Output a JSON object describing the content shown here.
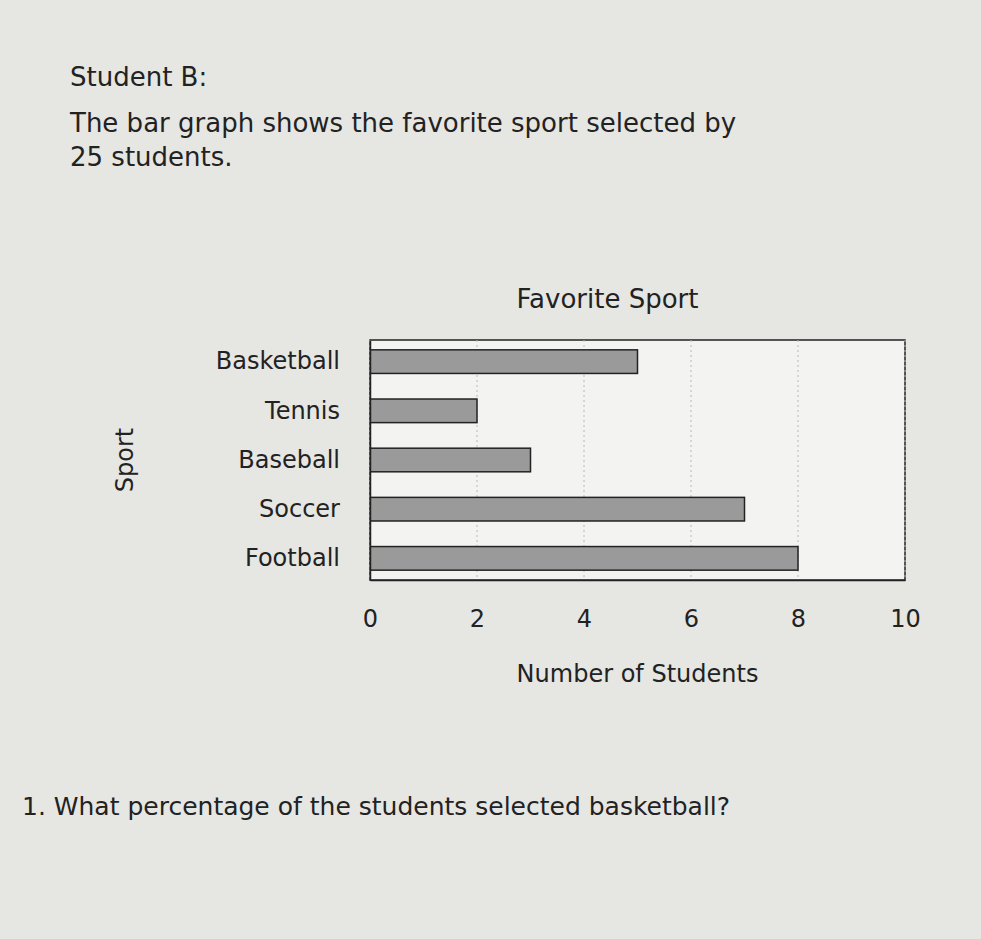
{
  "header": {
    "title": "Student B:",
    "description": [
      "The bar graph shows the favorite sport selected by",
      "25 students."
    ]
  },
  "chart_data": {
    "type": "bar",
    "title": "Favorite Sport",
    "x_label": "Number of Students",
    "y_label": "Sport",
    "categories": [
      "Basketball",
      "Tennis",
      "Baseball",
      "Soccer",
      "Football"
    ],
    "values": [
      5,
      2,
      3,
      7,
      8
    ],
    "color": "#9a9a9a",
    "orientation": "horizontal",
    "xlim": [
      0,
      10
    ],
    "xticks": [
      0,
      2,
      4,
      6,
      8,
      10
    ],
    "grid": true
  },
  "question": "1. What percentage of the students selected basketball?"
}
